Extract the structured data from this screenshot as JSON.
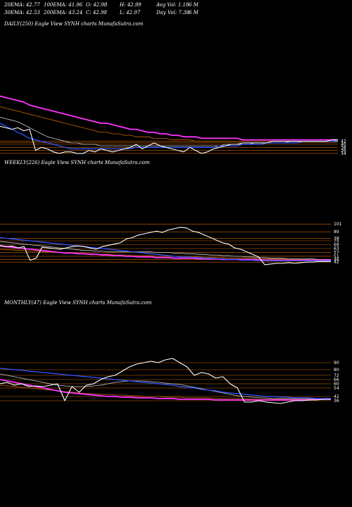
{
  "header": {
    "row1": [
      {
        "label": "20EMA: 42.77"
      },
      {
        "label": "100EMA: 41.96"
      },
      {
        "label": "O: 42.98"
      },
      {
        "label": "H: 42.99"
      },
      {
        "label": "Avg Vol: 1.18"
      },
      {
        "label": "6 M"
      }
    ],
    "row2": [
      {
        "label": "30EMA: 42.53"
      },
      {
        "label": "200EMA: 43.24"
      },
      {
        "label": "C: 42.98"
      },
      {
        "label": "L: 42.97"
      },
      {
        "label": "Day Vol: 7.38"
      },
      {
        "label": "6 M"
      }
    ]
  },
  "colors": {
    "price": "#ffffff",
    "ema_blue": "#3355ff",
    "ema_magenta": "#ff33ff",
    "ema_gray": "#cccccc",
    "ema_orange": "#cc6600",
    "level_line": "#cc6600"
  },
  "chart_data": [
    {
      "type": "line",
      "title": "DAILY(250) Eagle  View  SYNH charts MunafaSutra.com",
      "ylim": [
        33,
        75
      ],
      "tick_labels": [
        "42",
        "40",
        "38",
        "36",
        "34"
      ],
      "level_values": [
        42,
        41,
        40,
        38,
        36,
        34
      ],
      "series": [
        {
          "role": "price",
          "values": [
            52,
            51,
            50,
            51,
            49,
            50,
            36,
            38,
            37,
            35,
            34,
            35,
            35,
            34,
            34,
            36,
            35,
            37,
            36,
            35,
            36,
            37,
            38,
            40,
            37,
            39,
            41,
            39,
            38,
            37,
            36,
            35,
            38,
            36,
            34,
            35,
            37,
            38,
            39,
            40,
            40,
            41,
            41,
            41,
            41,
            41,
            42,
            42,
            42,
            42,
            42,
            42,
            42,
            42,
            42,
            42,
            43,
            43
          ]
        },
        {
          "role": "ema_blue",
          "values": [
            54,
            52,
            50,
            48,
            46,
            44,
            43,
            42,
            41,
            40,
            39,
            38,
            37,
            37,
            37,
            37,
            37,
            37,
            37,
            37,
            37,
            37,
            37,
            38,
            38,
            38,
            38,
            38,
            38,
            38,
            38,
            38,
            38,
            38,
            38,
            38,
            38,
            39,
            39,
            39,
            39,
            40,
            40,
            40,
            40,
            41,
            41,
            41,
            41,
            41,
            41,
            42,
            42,
            42,
            42,
            42,
            42,
            43
          ]
        },
        {
          "role": "ema_magenta",
          "values": [
            72,
            71,
            70,
            69,
            68,
            66,
            65,
            64,
            63,
            62,
            61,
            60,
            59,
            58,
            57,
            56,
            55,
            54,
            54,
            53,
            52,
            51,
            50,
            50,
            49,
            48,
            48,
            47,
            47,
            46,
            46,
            45,
            45,
            45,
            44,
            44,
            44,
            44,
            44,
            44,
            44,
            43,
            43,
            43,
            43,
            43,
            43,
            43,
            43,
            43,
            43,
            43,
            43,
            43,
            43,
            43,
            43,
            43
          ]
        },
        {
          "role": "ema_gray",
          "values": [
            58,
            57,
            56,
            55,
            53,
            51,
            49,
            47,
            45,
            44,
            43,
            42,
            41,
            41,
            40,
            40,
            40,
            39,
            39,
            39,
            39,
            39,
            39,
            39,
            39,
            39,
            39,
            39,
            39,
            39,
            39,
            39,
            39,
            39,
            39,
            39,
            39,
            39,
            40,
            40,
            40,
            40,
            40,
            41,
            41,
            41,
            41,
            41,
            41,
            42,
            42,
            42,
            42,
            42,
            42,
            42,
            42,
            42
          ]
        },
        {
          "role": "ema_orange",
          "values": [
            65,
            64,
            63,
            62,
            61,
            60,
            59,
            58,
            57,
            56,
            55,
            54,
            53,
            52,
            51,
            50,
            49,
            48,
            48,
            47,
            47,
            46,
            46,
            45,
            45,
            45,
            44,
            44,
            44,
            43,
            43,
            43,
            43,
            42,
            42,
            42,
            42,
            42,
            42,
            42,
            42,
            42,
            42,
            42,
            42,
            42,
            42,
            42,
            42,
            42,
            42,
            42,
            42,
            42,
            42,
            42,
            42,
            42
          ]
        }
      ]
    },
    {
      "type": "line",
      "title": "WEEKLY(226) Eagle  View  SYNH charts MunafaSutra.com",
      "ylim": [
        28,
        110
      ],
      "tick_labels": [
        "101",
        "89",
        "79",
        "75",
        "69",
        "63",
        "57",
        "51",
        "46",
        "42"
      ],
      "level_values": [
        101,
        89,
        79,
        75,
        69,
        63,
        57,
        51,
        46,
        42
      ],
      "series": [
        {
          "role": "price",
          "values": [
            68,
            66,
            67,
            64,
            66,
            45,
            48,
            65,
            64,
            63,
            62,
            64,
            66,
            67,
            66,
            64,
            62,
            66,
            68,
            70,
            72,
            78,
            80,
            84,
            86,
            88,
            90,
            88,
            92,
            94,
            96,
            95,
            90,
            88,
            84,
            80,
            76,
            72,
            70,
            64,
            62,
            58,
            54,
            50,
            38,
            39,
            40,
            40,
            41,
            40,
            41,
            42,
            42,
            43,
            43,
            43
          ]
        },
        {
          "role": "ema_blue",
          "values": [
            80,
            79,
            78,
            77,
            76,
            75,
            74,
            73,
            72,
            71,
            70,
            69,
            68,
            67,
            66,
            65,
            64,
            63,
            62,
            61,
            60,
            59,
            58,
            57,
            56,
            55,
            54,
            53,
            52,
            51,
            50,
            50,
            49,
            49,
            48,
            48,
            47,
            47,
            46,
            46,
            45,
            45,
            45,
            44,
            44,
            44,
            44,
            44,
            44,
            44,
            44,
            44,
            44,
            44,
            44,
            44
          ]
        },
        {
          "role": "ema_magenta",
          "values": [
            67,
            66,
            65,
            64,
            63,
            62,
            61,
            60,
            59,
            58,
            57,
            56,
            56,
            55,
            55,
            54,
            54,
            53,
            53,
            52,
            52,
            51,
            51,
            50,
            50,
            50,
            49,
            49,
            49,
            48,
            48,
            48,
            48,
            47,
            47,
            47,
            47,
            46,
            46,
            46,
            46,
            46,
            46,
            46,
            45,
            45,
            45,
            45,
            45,
            45,
            45,
            45,
            45,
            45,
            45,
            45
          ]
        },
        {
          "role": "ema_gray",
          "values": [
            74,
            73,
            72,
            71,
            70,
            69,
            68,
            67,
            66,
            65,
            64,
            63,
            62,
            61,
            60,
            60,
            59,
            59,
            58,
            58,
            58,
            58,
            58,
            58,
            58,
            58,
            57,
            57,
            57,
            56,
            56,
            55,
            55,
            54,
            54,
            53,
            53,
            52,
            52,
            51,
            51,
            50,
            50,
            49,
            49,
            48,
            48,
            48,
            47,
            47,
            47,
            47,
            47,
            46,
            46,
            46
          ]
        },
        {
          "role": "ema_orange",
          "values": [
            62,
            61,
            61,
            60,
            60,
            59,
            59,
            58,
            58,
            57,
            57,
            56,
            56,
            55,
            55,
            55,
            54,
            54,
            54,
            53,
            53,
            53,
            52,
            52,
            52,
            52,
            51,
            51,
            51,
            51,
            50,
            50,
            50,
            50,
            49,
            49,
            49,
            49,
            48,
            48,
            48,
            48,
            48,
            47,
            47,
            47,
            47,
            47,
            47,
            46,
            46,
            46,
            46,
            46,
            46,
            46
          ]
        }
      ]
    },
    {
      "type": "line",
      "title": "MONTHLY(47) Eagle  View  SYNH charts MunafaSutra.com",
      "ylim": [
        20,
        105
      ],
      "tick_labels": [
        "90",
        "80",
        "72",
        "66",
        "60",
        "54",
        "42",
        "36"
      ],
      "level_values": [
        90,
        80,
        72,
        66,
        60,
        54,
        42,
        36
      ],
      "series": [
        {
          "role": "price",
          "values": [
            60,
            62,
            58,
            60,
            56,
            57,
            56,
            58,
            60,
            36,
            56,
            48,
            58,
            60,
            66,
            70,
            72,
            78,
            84,
            88,
            90,
            92,
            90,
            94,
            96,
            90,
            84,
            72,
            76,
            74,
            68,
            70,
            60,
            54,
            34,
            34,
            36,
            34,
            33,
            32,
            34,
            36,
            36,
            37,
            37,
            38,
            38
          ]
        },
        {
          "role": "ema_blue",
          "values": [
            82,
            81,
            80,
            79,
            78,
            77,
            76,
            75,
            74,
            73,
            72,
            71,
            70,
            69,
            68,
            67,
            66,
            65,
            64,
            63,
            62,
            61,
            60,
            59,
            58,
            56,
            55,
            54,
            52,
            51,
            50,
            48,
            47,
            46,
            45,
            44,
            43,
            42,
            42,
            41,
            41,
            40,
            40,
            40,
            39,
            39,
            39
          ]
        },
        {
          "role": "ema_magenta",
          "values": [
            66,
            64,
            62,
            60,
            58,
            56,
            54,
            52,
            50,
            48,
            47,
            46,
            45,
            44,
            43,
            42,
            42,
            41,
            41,
            40,
            40,
            40,
            39,
            39,
            39,
            38,
            38,
            38,
            38,
            38,
            37,
            37,
            37,
            37,
            37,
            37,
            37,
            37,
            37,
            37,
            37,
            37,
            37,
            37,
            38,
            38,
            38
          ]
        },
        {
          "role": "ema_gray",
          "values": [
            74,
            72,
            70,
            68,
            66,
            64,
            62,
            60,
            58,
            57,
            56,
            56,
            56,
            57,
            58,
            60,
            62,
            63,
            64,
            64,
            64,
            63,
            62,
            61,
            60,
            59,
            57,
            55,
            53,
            51,
            49,
            47,
            45,
            43,
            42,
            41,
            40,
            40,
            39,
            39,
            39,
            39,
            39,
            39,
            39,
            39,
            39
          ]
        },
        {
          "role": "ema_orange",
          "values": [
            58,
            57,
            56,
            55,
            54,
            53,
            52,
            51,
            50,
            49,
            48,
            47,
            46,
            46,
            45,
            45,
            44,
            44,
            43,
            43,
            42,
            42,
            42,
            41,
            41,
            41,
            40,
            40,
            40,
            40,
            39,
            39,
            39,
            39,
            39,
            38,
            38,
            38,
            38,
            38,
            38,
            38,
            38,
            38,
            38,
            38,
            38
          ]
        }
      ]
    }
  ]
}
